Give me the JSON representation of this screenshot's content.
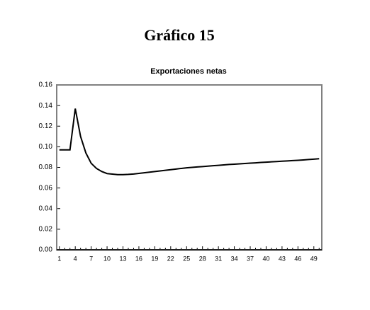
{
  "chart_data": {
    "type": "line",
    "title": "Gráfico 15",
    "subtitle": "Exportaciones netas",
    "categories": [
      "1",
      null,
      null,
      "4",
      null,
      null,
      "7",
      null,
      null,
      "10",
      null,
      null,
      "13",
      null,
      null,
      "16",
      null,
      null,
      "19",
      null,
      null,
      "22",
      null,
      null,
      "25",
      null,
      null,
      "28",
      null,
      null,
      "31",
      null,
      null,
      "34",
      null,
      null,
      "37",
      null,
      null,
      "40",
      null,
      null,
      "43",
      null,
      null,
      "46",
      null,
      null,
      "49",
      null
    ],
    "series": [
      {
        "color": "#000000",
        "values": [
          0.097,
          0.097,
          0.097,
          0.137,
          0.11,
          0.094,
          0.084,
          0.079,
          0.076,
          0.074,
          0.0735,
          0.073,
          0.073,
          0.0732,
          0.0736,
          0.0742,
          0.0748,
          0.0754,
          0.076,
          0.0766,
          0.0772,
          0.0778,
          0.0784,
          0.079,
          0.0796,
          0.08,
          0.0804,
          0.0808,
          0.0812,
          0.0816,
          0.082,
          0.0824,
          0.0828,
          0.0831,
          0.0834,
          0.0838,
          0.0841,
          0.0844,
          0.0848,
          0.0851,
          0.0854,
          0.0857,
          0.086,
          0.0863,
          0.0866,
          0.0869,
          0.0872,
          0.0876,
          0.088,
          0.0884
        ]
      }
    ],
    "ylim": [
      0,
      0.16
    ],
    "yticks": [
      {
        "value": 0,
        "label": "0.00"
      },
      {
        "value": 0.02,
        "label": "0.02"
      },
      {
        "value": 0.04,
        "label": "0.04"
      },
      {
        "value": 0.06,
        "label": "0.06"
      },
      {
        "value": 0.08,
        "label": "0.08"
      },
      {
        "value": 0.1,
        "label": "0.10"
      },
      {
        "value": 0.12,
        "label": "0.12"
      },
      {
        "value": 0.14,
        "label": "0.14"
      },
      {
        "value": 0.16,
        "label": "0.16"
      }
    ],
    "frame_color": "#808080"
  }
}
